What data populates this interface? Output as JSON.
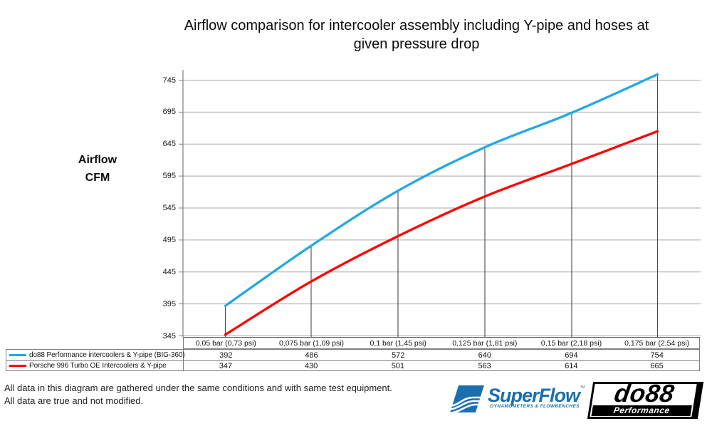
{
  "title": {
    "line1": "Airflow comparison for intercooler assembly including Y-pipe and hoses at",
    "line2": "given pressure drop"
  },
  "y_axis_title": {
    "line1": "Airflow",
    "line2": "CFM"
  },
  "chart_data": {
    "type": "line",
    "title": "Airflow comparison for intercooler assembly including Y-pipe and hoses at given pressure drop",
    "xlabel": "",
    "ylabel": "Airflow CFM",
    "categories": [
      "0,05 bar (0,73 psi)",
      "0,075 bar (1,09 psi)",
      "0,1 bar (1,45 psi)",
      "0,125 bar (1,81 psi)",
      "0,15 bar (2,18 psi)",
      "0,175 bar (2,54 psi)"
    ],
    "series": [
      {
        "name": "do88 Performance intercoolers & Y-pipe (BIG-360)",
        "color": "#22a9e4",
        "values": [
          392,
          486,
          572,
          640,
          694,
          754
        ]
      },
      {
        "name": "Porsche 996 Turbo OE Intercoolers & Y-pipe",
        "color": "#fe0000",
        "values": [
          347,
          430,
          501,
          563,
          614,
          665
        ]
      }
    ],
    "yticks": [
      345,
      395,
      445,
      495,
      545,
      595,
      645,
      695,
      745
    ],
    "ylim": [
      345,
      770
    ],
    "grid": true,
    "smooth_lines": true,
    "drop_lines": true,
    "legend_position": "data-table-below"
  },
  "footer": {
    "line1": "All data in this diagram are gathered under the same conditions and with same test equipment.",
    "line2": "All data are true and not modified."
  },
  "logos": {
    "superflow": {
      "name": "SuperFlow",
      "trademark": "™",
      "tagline": "DYNAMOMETERS & FLOWBENCHES",
      "color": "#1b6fae"
    },
    "do88": {
      "name": "do88",
      "tagline": "Performance"
    }
  }
}
